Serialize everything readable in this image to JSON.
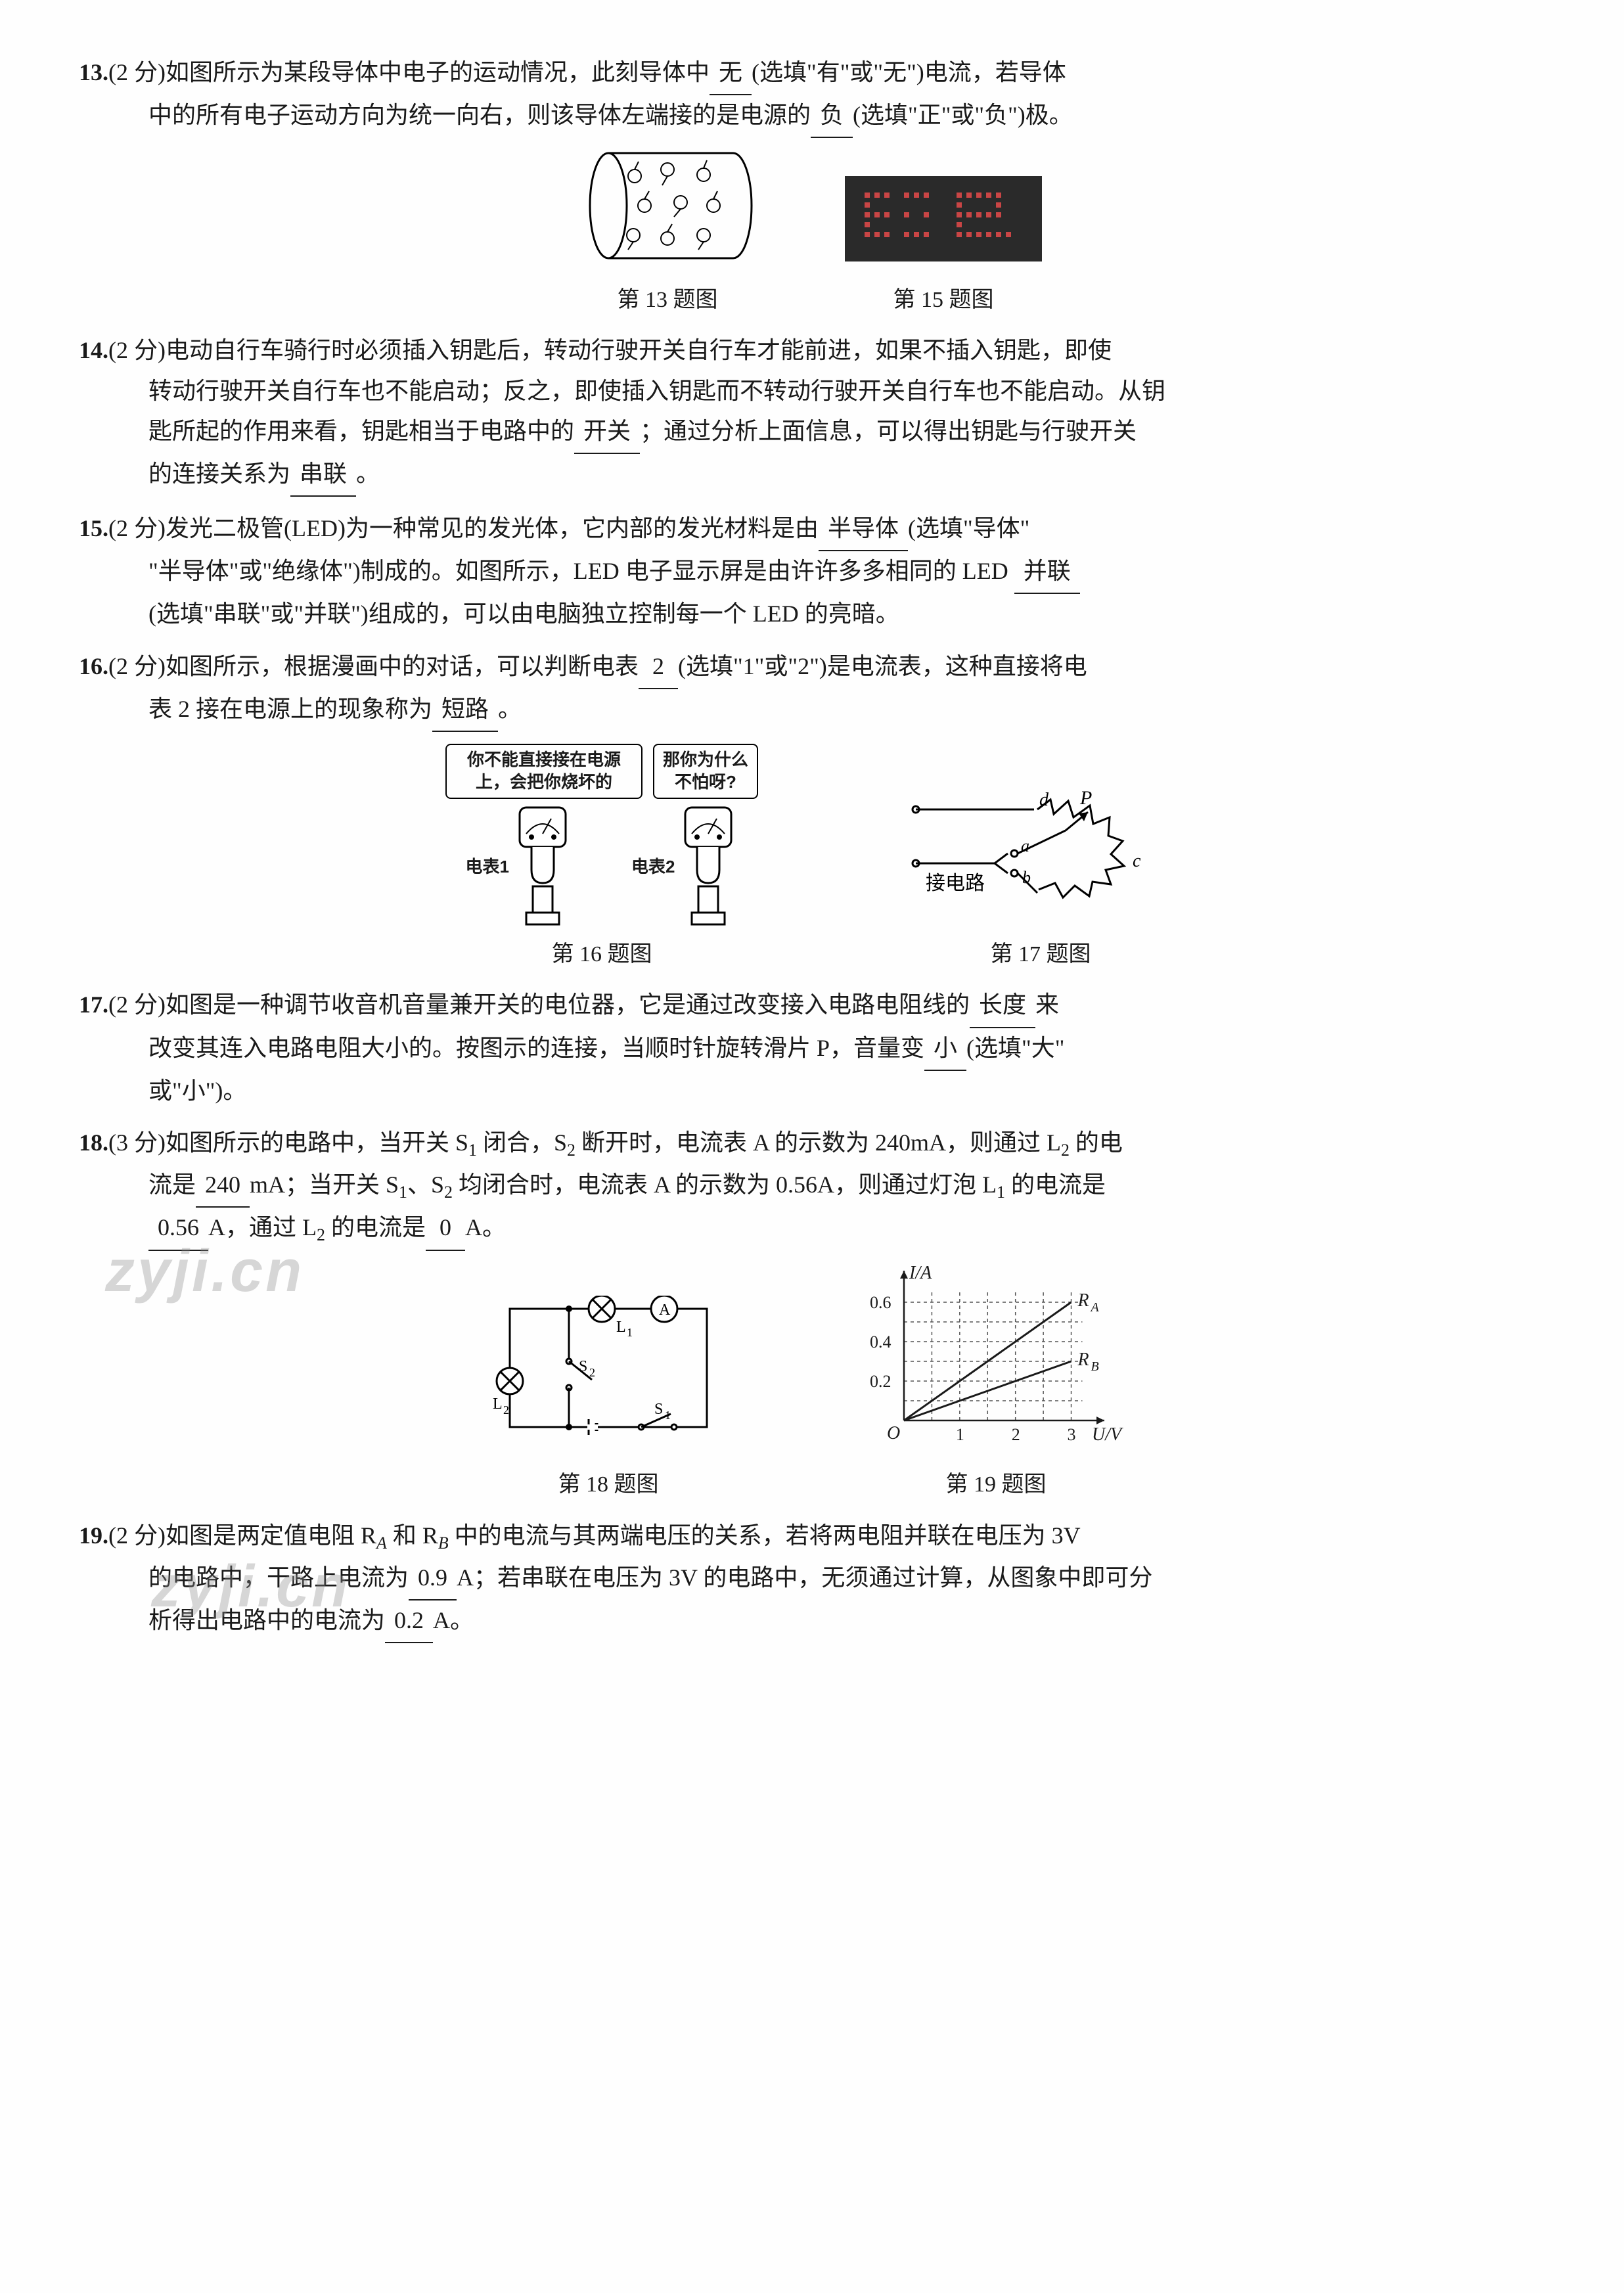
{
  "q13": {
    "num": "13.",
    "pts": "(2 分)",
    "t1": "如图所示为某段导体中电子的运动情况，此刻导体中",
    "b1": "无",
    "t2": "(选填\"有\"或\"无\")电流，若导体",
    "t3": "中的所有电子运动方向为统一向右，则该导体左端接的是电源的",
    "b2": "负",
    "t4": "(选填\"正\"或\"负\")极。",
    "figcap": "第 13 题图",
    "fig15cap": "第 15 题图"
  },
  "q14": {
    "num": "14.",
    "pts": "(2 分)",
    "t1": "电动自行车骑行时必须插入钥匙后，转动行驶开关自行车才能前进，如果不插入钥匙，即使",
    "t2": "转动行驶开关自行车也不能启动；反之，即使插入钥匙而不转动行驶开关自行车也不能启动。从钥",
    "t3": "匙所起的作用来看，钥匙相当于电路中的",
    "b1": "开关",
    "t4": "；通过分析上面信息，可以得出钥匙与行驶开关",
    "t5": "的连接关系为",
    "b2": "串联",
    "t6": "。"
  },
  "q15": {
    "num": "15.",
    "pts": "(2 分)",
    "t1": "发光二极管(LED)为一种常见的发光体，它内部的发光材料是由",
    "b1": "半导体",
    "t2": "(选填\"导体\"",
    "t3": "\"半导体\"或\"绝缘体\")制成的。如图所示，LED 电子显示屏是由许许多多相同的 LED",
    "b2": "并联",
    "t4": "(选填\"串联\"或\"并联\")组成的，可以由电脑独立控制每一个 LED 的亮暗。"
  },
  "q16": {
    "num": "16.",
    "pts": "(2 分)",
    "t1": "如图所示，根据漫画中的对话，可以判断电表",
    "b1": "2",
    "t2": "(选填\"1\"或\"2\")是电流表，这种直接将电",
    "t3": "表 2 接在电源上的现象称为",
    "b2": "短路",
    "t4": "。",
    "bubble1": "你不能直接接在电源上，会把你烧坏的",
    "bubble2": "那你为什么不怕呀?",
    "meter1": "电表1",
    "meter2": "电表2",
    "figcap": "第 16 题图",
    "fig17cap": "第 17 题图",
    "fig17_circuitlabel": "接电路",
    "fig17_a": "a",
    "fig17_b": "b",
    "fig17_c": "c",
    "fig17_d": "d",
    "fig17_P": "P"
  },
  "q17": {
    "num": "17.",
    "pts": "(2 分)",
    "t1": "如图是一种调节收音机音量兼开关的电位器，它是通过改变接入电路电阻线的",
    "b1": "长度",
    "t2": "来",
    "t3": "改变其连入电路电阻大小的。按图示的连接，当顺时针旋转滑片 P，音量变",
    "b2": "小",
    "t4": "(选填\"大\"",
    "t5": "或\"小\")。"
  },
  "q18": {
    "num": "18.",
    "pts": "(3 分)",
    "t1": "如图所示的电路中，当开关 S",
    "s1": "1",
    "t1b": " 闭合，S",
    "s2": "2",
    "t1c": " 断开时，电流表 A 的示数为 240mA，则通过 L",
    "s3": "2",
    "t1d": " 的电",
    "t2": "流是",
    "b1": "240",
    "t3": "mA；当开关 S",
    "s4": "1",
    "t4": "、S",
    "s5": "2",
    "t5": " 均闭合时，电流表 A 的示数为 0.56A，则通过灯泡 L",
    "s6": "1",
    "t6": " 的电流是",
    "b2": "0.56",
    "t7": "A，通过 L",
    "s7": "2",
    "t8": " 的电流是",
    "b3": "0",
    "t9": "A。",
    "figcap": "第 18 题图",
    "fig19cap": "第 19 题图"
  },
  "q19": {
    "num": "19.",
    "pts": "(2 分)",
    "t1": "如图是两定值电阻 R",
    "sA": "A",
    "t1b": " 和 R",
    "sB": "B",
    "t1c": " 中的电流与其两端电压的关系，若将两电阻并联在电压为 3V",
    "t2": "的电路中，干路上电流为",
    "b1": "0.9",
    "t3": "A；若串联在电压为 3V 的电路中，无须通过计算，从图象中即可分",
    "t4": "析得出电路中的电流为",
    "b2": "0.2",
    "t5": "A。"
  },
  "chart19": {
    "ylabel": "I/A",
    "xlabel": "U/V",
    "ylim": [
      0,
      0.7
    ],
    "xlim": [
      0,
      3.3
    ],
    "yticks": [
      "0.2",
      "0.4",
      "0.6"
    ],
    "xticks": [
      "1",
      "2",
      "3"
    ],
    "origin": "O",
    "lineA_label": "R",
    "lineA_sub": "A",
    "lineB_label": "R",
    "lineB_sub": "B",
    "grid_color": "#555555",
    "line_color": "#1a1a1a",
    "bg_color": "#ffffff",
    "lineA_points": [
      [
        0,
        0
      ],
      [
        3,
        0.6
      ]
    ],
    "lineB_points": [
      [
        0,
        0
      ],
      [
        3,
        0.3
      ]
    ]
  },
  "watermarks": {
    "wm1": "zyji.cn",
    "wm2": "zyji.cn"
  }
}
